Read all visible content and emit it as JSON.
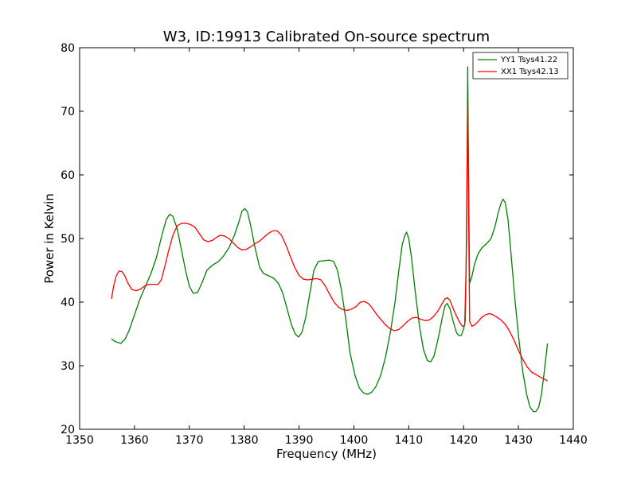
{
  "chart_data": {
    "type": "line",
    "title": "W3, ID:19913 Calibrated On-source spectrum",
    "xlabel": "Frequency (MHz)",
    "ylabel": "Power in Kelvin",
    "xlim": [
      1350,
      1440
    ],
    "ylim": [
      20,
      80
    ],
    "xticks": [
      "1350",
      "1360",
      "1370",
      "1380",
      "1390",
      "1400",
      "1410",
      "1420",
      "1430",
      "1440"
    ],
    "yticks": [
      "20",
      "30",
      "40",
      "50",
      "60",
      "70",
      "80"
    ],
    "grid": false,
    "legend_position": "top-right",
    "series": [
      {
        "name": "YY1 Tsys41.22",
        "color": "#008000",
        "points": [
          [
            1355.8,
            34.2
          ],
          [
            1356.5,
            33.8
          ],
          [
            1357.5,
            33.5
          ],
          [
            1358.3,
            34.2
          ],
          [
            1359.0,
            35.5
          ],
          [
            1360.0,
            38.0
          ],
          [
            1361.0,
            40.5
          ],
          [
            1362.0,
            42.5
          ],
          [
            1363.0,
            44.5
          ],
          [
            1364.0,
            47.0
          ],
          [
            1365.0,
            50.5
          ],
          [
            1365.8,
            53.0
          ],
          [
            1366.4,
            53.8
          ],
          [
            1367.0,
            53.5
          ],
          [
            1367.8,
            51.5
          ],
          [
            1368.5,
            48.5
          ],
          [
            1369.3,
            45.0
          ],
          [
            1370.0,
            42.5
          ],
          [
            1370.7,
            41.4
          ],
          [
            1371.5,
            41.5
          ],
          [
            1372.3,
            43.0
          ],
          [
            1373.2,
            45.0
          ],
          [
            1374.2,
            45.8
          ],
          [
            1375.2,
            46.3
          ],
          [
            1376.2,
            47.2
          ],
          [
            1377.2,
            48.5
          ],
          [
            1378.2,
            50.5
          ],
          [
            1379.0,
            52.5
          ],
          [
            1379.6,
            54.3
          ],
          [
            1380.1,
            54.7
          ],
          [
            1380.6,
            54.2
          ],
          [
            1381.2,
            52.0
          ],
          [
            1382.0,
            48.5
          ],
          [
            1382.8,
            45.5
          ],
          [
            1383.5,
            44.5
          ],
          [
            1384.3,
            44.2
          ],
          [
            1385.3,
            43.8
          ],
          [
            1386.2,
            43.0
          ],
          [
            1387.0,
            41.5
          ],
          [
            1387.8,
            39.0
          ],
          [
            1388.6,
            36.5
          ],
          [
            1389.3,
            35.0
          ],
          [
            1389.9,
            34.5
          ],
          [
            1390.5,
            35.2
          ],
          [
            1391.2,
            37.5
          ],
          [
            1392.0,
            41.5
          ],
          [
            1392.7,
            45.0
          ],
          [
            1393.5,
            46.4
          ],
          [
            1394.5,
            46.5
          ],
          [
            1395.5,
            46.6
          ],
          [
            1396.3,
            46.4
          ],
          [
            1397.0,
            45.0
          ],
          [
            1397.7,
            42.0
          ],
          [
            1398.5,
            37.5
          ],
          [
            1399.3,
            32.0
          ],
          [
            1400.2,
            28.5
          ],
          [
            1401.0,
            26.5
          ],
          [
            1401.8,
            25.7
          ],
          [
            1402.5,
            25.5
          ],
          [
            1403.2,
            25.8
          ],
          [
            1404.0,
            26.7
          ],
          [
            1404.9,
            28.5
          ],
          [
            1405.8,
            31.5
          ],
          [
            1406.7,
            35.5
          ],
          [
            1407.5,
            40.0
          ],
          [
            1408.2,
            45.0
          ],
          [
            1408.8,
            49.0
          ],
          [
            1409.3,
            50.5
          ],
          [
            1409.6,
            51.0
          ],
          [
            1410.0,
            50.0
          ],
          [
            1410.5,
            47.0
          ],
          [
            1411.2,
            41.5
          ],
          [
            1412.0,
            36.0
          ],
          [
            1412.7,
            32.5
          ],
          [
            1413.4,
            30.8
          ],
          [
            1414.0,
            30.6
          ],
          [
            1414.6,
            31.5
          ],
          [
            1415.3,
            34.0
          ],
          [
            1416.1,
            37.5
          ],
          [
            1416.6,
            39.4
          ],
          [
            1417.0,
            39.8
          ],
          [
            1417.5,
            39.0
          ],
          [
            1418.1,
            37.0
          ],
          [
            1418.7,
            35.2
          ],
          [
            1419.2,
            34.7
          ],
          [
            1419.6,
            34.8
          ],
          [
            1420.0,
            35.8
          ],
          [
            1420.3,
            37.0
          ],
          [
            1420.55,
            50.0
          ],
          [
            1420.75,
            77.0
          ],
          [
            1420.95,
            55.0
          ],
          [
            1421.1,
            43.0
          ],
          [
            1421.5,
            44.0
          ],
          [
            1422.0,
            46.0
          ],
          [
            1422.6,
            47.5
          ],
          [
            1423.3,
            48.5
          ],
          [
            1424.2,
            49.2
          ],
          [
            1425.0,
            50.0
          ],
          [
            1425.7,
            51.8
          ],
          [
            1426.3,
            54.0
          ],
          [
            1426.8,
            55.5
          ],
          [
            1427.2,
            56.2
          ],
          [
            1427.6,
            55.6
          ],
          [
            1428.1,
            53.0
          ],
          [
            1428.7,
            47.0
          ],
          [
            1429.4,
            40.0
          ],
          [
            1430.1,
            34.0
          ],
          [
            1430.8,
            29.0
          ],
          [
            1431.5,
            25.5
          ],
          [
            1432.1,
            23.5
          ],
          [
            1432.7,
            22.8
          ],
          [
            1433.2,
            22.8
          ],
          [
            1433.7,
            23.5
          ],
          [
            1434.2,
            25.5
          ],
          [
            1434.7,
            29.0
          ],
          [
            1435.3,
            33.5
          ]
        ]
      },
      {
        "name": "XX1 Tsys42.13",
        "color": "#ff0000",
        "points": [
          [
            1355.8,
            40.5
          ],
          [
            1356.2,
            42.5
          ],
          [
            1356.7,
            44.2
          ],
          [
            1357.2,
            44.9
          ],
          [
            1357.7,
            44.8
          ],
          [
            1358.2,
            44.2
          ],
          [
            1358.8,
            43.0
          ],
          [
            1359.5,
            42.0
          ],
          [
            1360.3,
            41.8
          ],
          [
            1361.0,
            42.0
          ],
          [
            1361.8,
            42.5
          ],
          [
            1362.7,
            42.8
          ],
          [
            1363.5,
            42.8
          ],
          [
            1364.3,
            42.8
          ],
          [
            1364.9,
            43.5
          ],
          [
            1365.5,
            45.5
          ],
          [
            1366.2,
            48.0
          ],
          [
            1367.0,
            50.5
          ],
          [
            1367.8,
            52.0
          ],
          [
            1368.6,
            52.4
          ],
          [
            1369.4,
            52.4
          ],
          [
            1370.2,
            52.2
          ],
          [
            1371.0,
            51.8
          ],
          [
            1371.8,
            50.8
          ],
          [
            1372.6,
            49.8
          ],
          [
            1373.4,
            49.5
          ],
          [
            1374.2,
            49.7
          ],
          [
            1375.0,
            50.2
          ],
          [
            1375.6,
            50.5
          ],
          [
            1376.4,
            50.4
          ],
          [
            1377.2,
            50.0
          ],
          [
            1378.0,
            49.3
          ],
          [
            1378.8,
            48.6
          ],
          [
            1379.6,
            48.2
          ],
          [
            1380.4,
            48.3
          ],
          [
            1381.2,
            48.7
          ],
          [
            1382.0,
            49.2
          ],
          [
            1382.8,
            49.6
          ],
          [
            1383.6,
            50.2
          ],
          [
            1384.4,
            50.8
          ],
          [
            1385.2,
            51.2
          ],
          [
            1386.0,
            51.2
          ],
          [
            1386.8,
            50.5
          ],
          [
            1387.6,
            49.0
          ],
          [
            1388.4,
            47.2
          ],
          [
            1389.2,
            45.5
          ],
          [
            1390.0,
            44.2
          ],
          [
            1390.8,
            43.6
          ],
          [
            1391.6,
            43.5
          ],
          [
            1392.4,
            43.6
          ],
          [
            1393.2,
            43.7
          ],
          [
            1394.0,
            43.5
          ],
          [
            1394.8,
            42.5
          ],
          [
            1395.6,
            41.2
          ],
          [
            1396.4,
            40.0
          ],
          [
            1397.2,
            39.2
          ],
          [
            1398.0,
            38.8
          ],
          [
            1398.8,
            38.7
          ],
          [
            1399.6,
            38.9
          ],
          [
            1400.4,
            39.3
          ],
          [
            1401.2,
            40.0
          ],
          [
            1401.9,
            40.1
          ],
          [
            1402.6,
            39.8
          ],
          [
            1403.4,
            39.0
          ],
          [
            1404.2,
            38.0
          ],
          [
            1405.0,
            37.2
          ],
          [
            1405.8,
            36.4
          ],
          [
            1406.6,
            35.8
          ],
          [
            1407.4,
            35.5
          ],
          [
            1408.2,
            35.7
          ],
          [
            1409.0,
            36.3
          ],
          [
            1409.8,
            37.0
          ],
          [
            1410.6,
            37.5
          ],
          [
            1411.4,
            37.6
          ],
          [
            1412.2,
            37.3
          ],
          [
            1413.0,
            37.1
          ],
          [
            1413.8,
            37.2
          ],
          [
            1414.6,
            37.8
          ],
          [
            1415.4,
            38.7
          ],
          [
            1416.1,
            39.8
          ],
          [
            1416.6,
            40.5
          ],
          [
            1417.0,
            40.7
          ],
          [
            1417.5,
            40.3
          ],
          [
            1418.1,
            39.0
          ],
          [
            1418.7,
            37.8
          ],
          [
            1419.3,
            36.8
          ],
          [
            1419.8,
            36.2
          ],
          [
            1420.2,
            36.3
          ],
          [
            1420.45,
            45.0
          ],
          [
            1420.75,
            71.0
          ],
          [
            1420.95,
            50.0
          ],
          [
            1421.1,
            37.0
          ],
          [
            1421.5,
            36.2
          ],
          [
            1422.0,
            36.4
          ],
          [
            1422.6,
            36.9
          ],
          [
            1423.3,
            37.6
          ],
          [
            1424.0,
            38.0
          ],
          [
            1424.7,
            38.2
          ],
          [
            1425.4,
            38.0
          ],
          [
            1426.1,
            37.6
          ],
          [
            1426.8,
            37.2
          ],
          [
            1427.6,
            36.5
          ],
          [
            1428.4,
            35.4
          ],
          [
            1429.2,
            34.0
          ],
          [
            1430.0,
            32.4
          ],
          [
            1430.8,
            31.0
          ],
          [
            1431.6,
            29.8
          ],
          [
            1432.4,
            29.0
          ],
          [
            1433.2,
            28.6
          ],
          [
            1434.0,
            28.2
          ],
          [
            1434.7,
            27.9
          ],
          [
            1435.3,
            27.6
          ]
        ]
      }
    ]
  }
}
